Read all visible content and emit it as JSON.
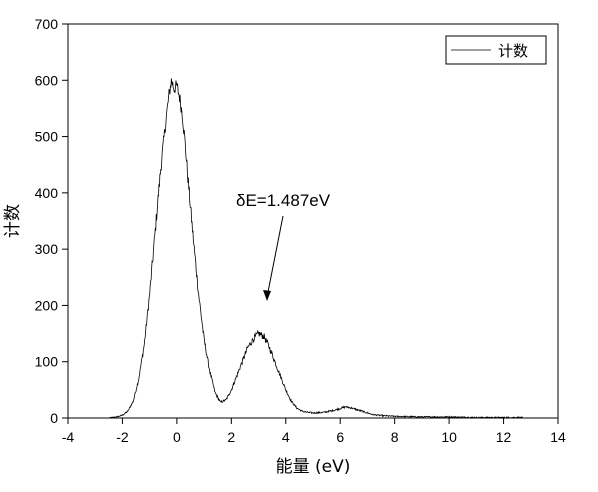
{
  "chart_data": {
    "type": "line",
    "xlabel": "能量 (eV)",
    "ylabel": "计数",
    "xlim": [
      -4,
      14
    ],
    "ylim": [
      0,
      700
    ],
    "xticks": [
      -4,
      -2,
      0,
      2,
      4,
      6,
      8,
      10,
      12,
      14
    ],
    "yticks": [
      0,
      100,
      200,
      300,
      400,
      500,
      600,
      700
    ],
    "grid": false,
    "legend_position": "top-right",
    "series": [
      {
        "name": "计数",
        "color": "#000000",
        "x": [
          -2.5,
          -2.2,
          -2.0,
          -1.8,
          -1.6,
          -1.4,
          -1.2,
          -1.0,
          -0.8,
          -0.6,
          -0.4,
          -0.3,
          -0.2,
          -0.1,
          0.0,
          0.1,
          0.2,
          0.3,
          0.4,
          0.6,
          0.8,
          1.0,
          1.2,
          1.4,
          1.6,
          1.8,
          2.0,
          2.2,
          2.4,
          2.6,
          2.8,
          3.0,
          3.2,
          3.4,
          3.6,
          3.8,
          4.0,
          4.2,
          4.4,
          4.6,
          4.8,
          5.0,
          5.4,
          5.8,
          6.2,
          6.4,
          6.8,
          7.2,
          7.6,
          8.0,
          9.0,
          10.0,
          11.0,
          12.0,
          12.7
        ],
        "y": [
          0,
          2,
          5,
          12,
          30,
          70,
          130,
          220,
          330,
          440,
          530,
          570,
          600,
          585,
          590,
          570,
          540,
          490,
          430,
          320,
          220,
          140,
          85,
          45,
          28,
          32,
          50,
          75,
          100,
          125,
          140,
          150,
          145,
          125,
          100,
          75,
          50,
          30,
          18,
          12,
          10,
          9,
          10,
          14,
          20,
          18,
          12,
          6,
          4,
          3,
          2,
          2,
          1,
          1,
          1
        ]
      }
    ],
    "annotations": [
      {
        "text": "δE=1.487eV",
        "x": 3.2,
        "y": 175
      }
    ]
  }
}
